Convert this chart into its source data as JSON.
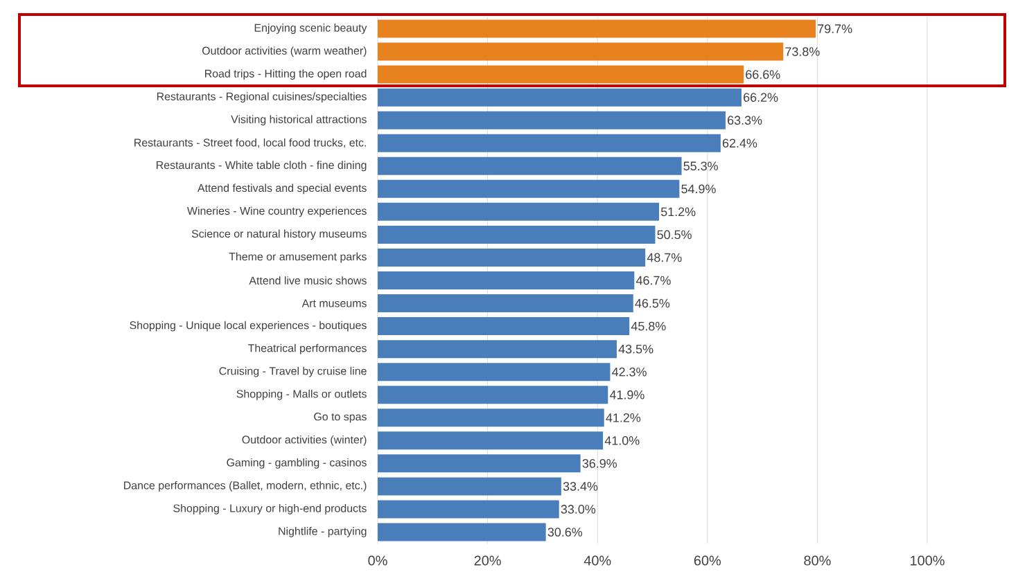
{
  "chart_data": {
    "type": "bar",
    "orientation": "horizontal",
    "categories": [
      "Enjoying scenic beauty",
      "Outdoor activities (warm weather)",
      "Road trips - Hitting the open road",
      "Restaurants - Regional cuisines/specialties",
      "Visiting historical attractions",
      "Restaurants - Street food, local food trucks, etc.",
      "Restaurants - White table cloth - fine dining",
      "Attend festivals and special events",
      "Wineries - Wine country experiences",
      "Science or natural history museums",
      "Theme or amusement parks",
      "Attend live music shows",
      "Art museums",
      "Shopping - Unique local experiences - boutiques",
      "Theatrical performances",
      "Cruising - Travel by cruise line",
      "Shopping - Malls or outlets",
      "Go to spas",
      "Outdoor activities (winter)",
      "Gaming - gambling - casinos",
      "Dance performances (Ballet, modern, ethnic, etc.)",
      "Shopping - Luxury or high-end products",
      "Nightlife - partying"
    ],
    "values": [
      79.7,
      73.8,
      66.6,
      66.2,
      63.3,
      62.4,
      55.3,
      54.9,
      51.2,
      50.5,
      48.7,
      46.7,
      46.5,
      45.8,
      43.5,
      42.3,
      41.9,
      41.2,
      41.0,
      36.9,
      33.4,
      33.0,
      30.6
    ],
    "value_labels": [
      "79.7%",
      "73.8%",
      "66.6%",
      "66.2%",
      "63.3%",
      "62.4%",
      "55.3%",
      "54.9%",
      "51.2%",
      "50.5%",
      "48.7%",
      "46.7%",
      "46.5%",
      "45.8%",
      "43.5%",
      "42.3%",
      "41.9%",
      "41.2%",
      "41.0%",
      "36.9%",
      "33.4%",
      "33.0%",
      "30.6%"
    ],
    "colors": [
      "#e8821e",
      "#e8821e",
      "#e8821e",
      "#4a7ebb",
      "#4a7ebb",
      "#4a7ebb",
      "#4a7ebb",
      "#4a7ebb",
      "#4a7ebb",
      "#4a7ebb",
      "#4a7ebb",
      "#4a7ebb",
      "#4a7ebb",
      "#4a7ebb",
      "#4a7ebb",
      "#4a7ebb",
      "#4a7ebb",
      "#4a7ebb",
      "#4a7ebb",
      "#4a7ebb",
      "#4a7ebb",
      "#4a7ebb",
      "#4a7ebb"
    ],
    "xlim": [
      0,
      100
    ],
    "xticks": [
      {
        "value": 0,
        "label": "0%"
      },
      {
        "value": 20,
        "label": "20%"
      },
      {
        "value": 40,
        "label": "40%"
      },
      {
        "value": 60,
        "label": "60%"
      },
      {
        "value": 80,
        "label": "80%"
      },
      {
        "value": 100,
        "label": "100%"
      }
    ],
    "grid": "x"
  }
}
